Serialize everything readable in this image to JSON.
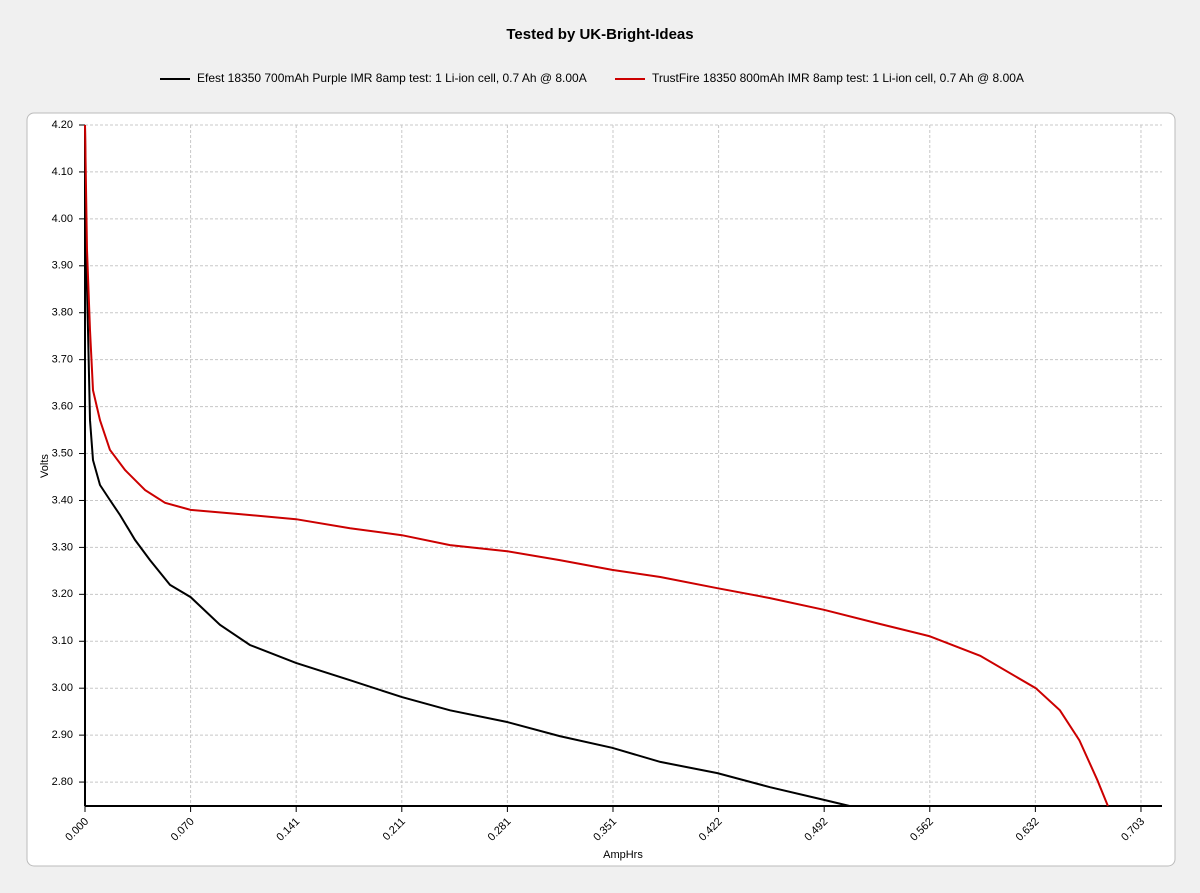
{
  "chart_data": {
    "type": "line",
    "title": "Tested by UK-Bright-Ideas",
    "x_label": "AmpHrs",
    "y_label": "Volts",
    "grid": true,
    "xlim": [
      0,
      0.717
    ],
    "ylim": [
      2.749,
      4.2
    ],
    "xticks": [
      {
        "value": 0,
        "label": "0.000"
      },
      {
        "value": 0.0703,
        "label": "0.070"
      },
      {
        "value": 0.1406,
        "label": "0.141"
      },
      {
        "value": 0.2109,
        "label": "0.211"
      },
      {
        "value": 0.2812,
        "label": "0.281"
      },
      {
        "value": 0.3515,
        "label": "0.351"
      },
      {
        "value": 0.4218,
        "label": "0.422"
      },
      {
        "value": 0.4921,
        "label": "0.492"
      },
      {
        "value": 0.5624,
        "label": "0.562"
      },
      {
        "value": 0.6327,
        "label": "0.632"
      },
      {
        "value": 0.703,
        "label": "0.703"
      }
    ],
    "yticks": [
      {
        "value": 2.8,
        "label": "2.80"
      },
      {
        "value": 2.9,
        "label": "2.90"
      },
      {
        "value": 3.0,
        "label": "3.00"
      },
      {
        "value": 3.1,
        "label": "3.10"
      },
      {
        "value": 3.2,
        "label": "3.20"
      },
      {
        "value": 3.3,
        "label": "3.30"
      },
      {
        "value": 3.4,
        "label": "3.40"
      },
      {
        "value": 3.5,
        "label": "3.50"
      },
      {
        "value": 3.6,
        "label": "3.60"
      },
      {
        "value": 3.7,
        "label": "3.70"
      },
      {
        "value": 3.8,
        "label": "3.80"
      },
      {
        "value": 3.9,
        "label": "3.90"
      },
      {
        "value": 4.0,
        "label": "4.00"
      },
      {
        "value": 4.1,
        "label": "4.10"
      },
      {
        "value": 4.2,
        "label": "4.20"
      }
    ],
    "series": [
      {
        "name": "Efest 18350 700mAh Purple IMR 8amp test: 1 Li-ion cell, 0.7 Ah @ 8.00A",
        "color": "#000000",
        "x": [
          0,
          0.0007,
          0.002,
          0.0033,
          0.0053,
          0.01,
          0.0166,
          0.0233,
          0.0333,
          0.0433,
          0.0566,
          0.0703,
          0.0899,
          0.1098,
          0.1405,
          0.1764,
          0.211,
          0.243,
          0.281,
          0.316,
          0.351,
          0.383,
          0.421,
          0.456,
          0.492,
          0.509
        ],
        "values": [
          4.2,
          3.934,
          3.763,
          3.571,
          3.486,
          3.433,
          3.401,
          3.369,
          3.316,
          3.273,
          3.22,
          3.194,
          3.135,
          3.092,
          3.054,
          3.017,
          2.981,
          2.953,
          2.928,
          2.898,
          2.873,
          2.843,
          2.819,
          2.789,
          2.762,
          2.749
        ]
      },
      {
        "name": "TrustFire 18350 800mAh IMR 8amp test: 1 Li-ion cell, 0.7 Ah @ 8.00A",
        "color": "#cc0000",
        "x": [
          0,
          0.0013,
          0.0033,
          0.0053,
          0.01,
          0.0166,
          0.0266,
          0.04,
          0.0533,
          0.0703,
          0.103,
          0.1405,
          0.1764,
          0.211,
          0.243,
          0.281,
          0.316,
          0.351,
          0.383,
          0.421,
          0.456,
          0.492,
          0.529,
          0.562,
          0.596,
          0.633,
          0.649,
          0.662,
          0.674,
          0.681
        ],
        "values": [
          4.2,
          3.934,
          3.763,
          3.635,
          3.571,
          3.508,
          3.465,
          3.422,
          3.395,
          3.38,
          3.371,
          3.36,
          3.341,
          3.326,
          3.305,
          3.292,
          3.273,
          3.252,
          3.237,
          3.213,
          3.192,
          3.167,
          3.137,
          3.111,
          3.069,
          3.0,
          2.953,
          2.889,
          2.804,
          2.749
        ]
      }
    ]
  }
}
